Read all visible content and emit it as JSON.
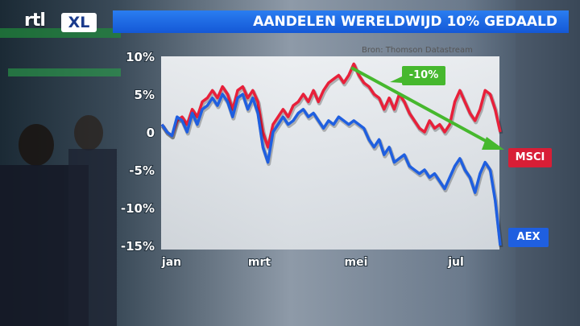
{
  "header": {
    "logo_text": "rtl",
    "logo_xl": "XL",
    "title": "AANDELEN WERELDWIJD 10% GEDAALD"
  },
  "source": "Bron: Thomson Datastream",
  "colors": {
    "msci": "#e8203a",
    "aex": "#1f5fe0",
    "trend": "#46b82e",
    "title_bar": "#1f6ae8"
  },
  "labels": {
    "msci": "MSCI",
    "aex": "AEX",
    "trend": "-10%"
  },
  "chart_data": {
    "type": "line",
    "title": "AANDELEN WERELDWIJD 10% GEDAALD",
    "xlabel": "",
    "ylabel": "",
    "x_ticks": [
      "jan",
      "mrt",
      "mei",
      "jul"
    ],
    "y_ticks": [
      "10%",
      "5%",
      "0",
      "-5%",
      "-10%",
      "-15%"
    ],
    "ylim": [
      -15,
      10
    ],
    "grid": false,
    "series": [
      {
        "name": "MSCI",
        "color": "#e8203a",
        "values": [
          1,
          0,
          -0.5,
          1.5,
          2,
          1,
          3,
          2,
          4,
          4.5,
          5.5,
          4.5,
          6,
          5,
          3,
          5.5,
          6,
          4.5,
          5.5,
          4,
          0,
          -2,
          1,
          2,
          3,
          2,
          3.5,
          4,
          5,
          4,
          5.5,
          4,
          5.5,
          6.5,
          7,
          7.5,
          6.5,
          7.5,
          9,
          7.5,
          6.5,
          6,
          5,
          4.5,
          3,
          4.5,
          3,
          5,
          4,
          2.5,
          1.5,
          0.5,
          0,
          1.5,
          0.5,
          1,
          0,
          1,
          4,
          5.5,
          4,
          2.5,
          1.5,
          3,
          5.5,
          5,
          3,
          0
        ]
      },
      {
        "name": "AEX",
        "color": "#1f5fe0",
        "values": [
          1,
          0,
          -0.5,
          2,
          1.5,
          0,
          2.5,
          1,
          3,
          3.5,
          4.5,
          3.5,
          5,
          4,
          2,
          4.5,
          5,
          3,
          4.5,
          2.5,
          -2,
          -4,
          0,
          1,
          2,
          1,
          1.5,
          2.5,
          3,
          2,
          2.5,
          1.5,
          0.5,
          1.5,
          1,
          2,
          1.5,
          1,
          1.5,
          1,
          0.5,
          -1,
          -2,
          -1,
          -3,
          -2,
          -4,
          -3.5,
          -3,
          -4.5,
          -5,
          -5.5,
          -5,
          -6,
          -5.5,
          -6.5,
          -7.5,
          -6,
          -4.5,
          -3.5,
          -5,
          -6,
          -8,
          -5.5,
          -4,
          -5,
          -9,
          -15
        ]
      }
    ]
  }
}
